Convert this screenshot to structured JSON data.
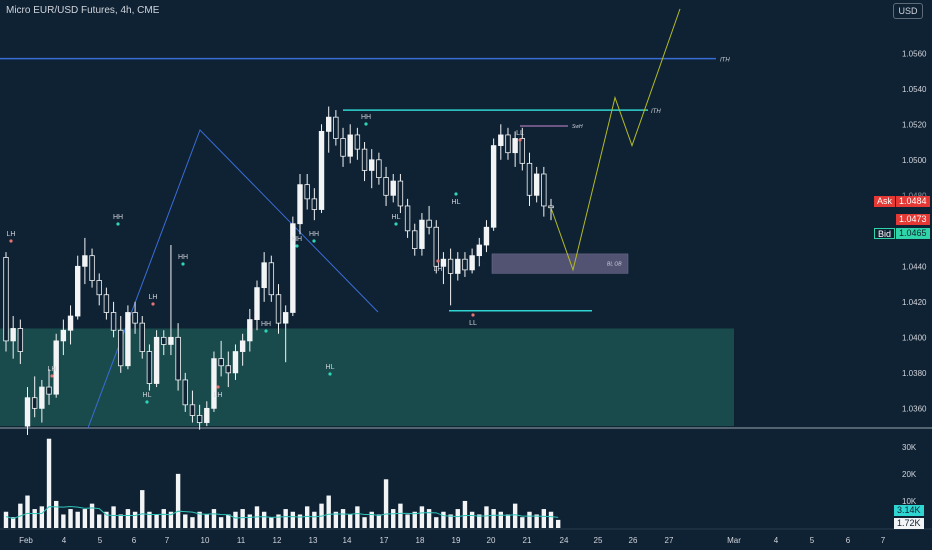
{
  "header": {
    "title": "Micro EUR/USD Futures, 4h, CME",
    "currency_button": "USD"
  },
  "colors": {
    "background": "#0f2233",
    "up_candle": "#f2f4f6",
    "down_candle": "#f2f4f6",
    "zone_fill": "#1d5a55",
    "order_block": "#8a7aa8",
    "cyan_line": "#2fd5d0",
    "blue_line": "#3a6cd6",
    "projection": "#b3bb24",
    "ask": "#e53935",
    "bid": "#2fd5a8",
    "volume_ma": "#2fc3b8"
  },
  "price_axis": {
    "ticks": [
      "1.0560",
      "1.0540",
      "1.0520",
      "1.0500",
      "1.0480",
      "1.0460",
      "1.0440",
      "1.0420",
      "1.0400",
      "1.0380",
      "1.0360"
    ],
    "ask": {
      "label": "Ask",
      "value": "1.0484"
    },
    "last": {
      "value": "1.0473"
    },
    "bid": {
      "label": "Bid",
      "value": "1.0465"
    },
    "hidden_tick": "1.0480"
  },
  "volume_axis": {
    "ticks": [
      "30K",
      "20K",
      "10K"
    ],
    "volume_value": "3.14K",
    "ma_value": "1.72K"
  },
  "time_axis": {
    "ticks": [
      "Feb",
      "4",
      "5",
      "6",
      "7",
      "10",
      "11",
      "12",
      "13",
      "14",
      "17",
      "18",
      "19",
      "20",
      "21",
      "24",
      "25",
      "26",
      "27",
      "Mar",
      "4",
      "5",
      "6",
      "7"
    ]
  },
  "annotations": {
    "ith_top": "ITH",
    "ith_mid": "ITH",
    "swh": "SwH",
    "bl_ob": "BL OB",
    "structure_labels": [
      "LH",
      "HH",
      "LH",
      "HH",
      "LH",
      "LH",
      "HL",
      "HH",
      "HH",
      "HL",
      "HH",
      "HL",
      "HH",
      "HL",
      "LH",
      "LL",
      "LL",
      "HH"
    ]
  },
  "chart_data": {
    "type": "candlestick",
    "title": "Micro EUR/USD Futures, 4h, CME",
    "price_range": [
      1.035,
      1.059
    ],
    "candles": [
      [
        1.0445,
        1.0448,
        1.0392,
        1.0398
      ],
      [
        1.0398,
        1.0412,
        1.0388,
        1.0405
      ],
      [
        1.0405,
        1.041,
        1.0385,
        1.0392
      ],
      [
        1.035,
        1.0372,
        1.0345,
        1.0366
      ],
      [
        1.0366,
        1.0378,
        1.0355,
        1.036
      ],
      [
        1.036,
        1.0376,
        1.0352,
        1.0372
      ],
      [
        1.0372,
        1.0382,
        1.0362,
        1.0368
      ],
      [
        1.0368,
        1.0402,
        1.0366,
        1.0398
      ],
      [
        1.0398,
        1.041,
        1.039,
        1.0404
      ],
      [
        1.0404,
        1.0418,
        1.0396,
        1.0412
      ],
      [
        1.0412,
        1.0446,
        1.041,
        1.044
      ],
      [
        1.044,
        1.0456,
        1.043,
        1.0446
      ],
      [
        1.0446,
        1.045,
        1.0428,
        1.0432
      ],
      [
        1.0432,
        1.0436,
        1.0418,
        1.0424
      ],
      [
        1.0424,
        1.0428,
        1.041,
        1.0414
      ],
      [
        1.0414,
        1.042,
        1.04,
        1.0404
      ],
      [
        1.0404,
        1.0412,
        1.038,
        1.0384
      ],
      [
        1.0384,
        1.0418,
        1.0382,
        1.0414
      ],
      [
        1.0414,
        1.042,
        1.0402,
        1.0408
      ],
      [
        1.0408,
        1.0412,
        1.0388,
        1.0392
      ],
      [
        1.0392,
        1.0396,
        1.037,
        1.0374
      ],
      [
        1.0374,
        1.0404,
        1.0372,
        1.04
      ],
      [
        1.04,
        1.0404,
        1.039,
        1.0396
      ],
      [
        1.0396,
        1.0452,
        1.039,
        1.04
      ],
      [
        1.04,
        1.0408,
        1.037,
        1.0376
      ],
      [
        1.0376,
        1.038,
        1.0358,
        1.0362
      ],
      [
        1.0362,
        1.037,
        1.0352,
        1.0356
      ],
      [
        1.0356,
        1.0362,
        1.0348,
        1.0352
      ],
      [
        1.0352,
        1.0364,
        1.035,
        1.036
      ],
      [
        1.036,
        1.0392,
        1.0358,
        1.0388
      ],
      [
        1.0388,
        1.0398,
        1.0378,
        1.0384
      ],
      [
        1.0384,
        1.0392,
        1.0372,
        1.038
      ],
      [
        1.038,
        1.0396,
        1.0376,
        1.0392
      ],
      [
        1.0392,
        1.0402,
        1.0384,
        1.0398
      ],
      [
        1.0398,
        1.0416,
        1.0392,
        1.041
      ],
      [
        1.041,
        1.0432,
        1.0404,
        1.0428
      ],
      [
        1.0428,
        1.0448,
        1.042,
        1.0442
      ],
      [
        1.0442,
        1.0446,
        1.042,
        1.0424
      ],
      [
        1.0424,
        1.043,
        1.0402,
        1.0408
      ],
      [
        1.0408,
        1.0418,
        1.0386,
        1.0414
      ],
      [
        1.0414,
        1.0468,
        1.0412,
        1.0464
      ],
      [
        1.0464,
        1.0492,
        1.0458,
        1.0486
      ],
      [
        1.0486,
        1.0492,
        1.0472,
        1.0478
      ],
      [
        1.0478,
        1.0484,
        1.0466,
        1.0472
      ],
      [
        1.0472,
        1.052,
        1.047,
        1.0516
      ],
      [
        1.0516,
        1.053,
        1.0504,
        1.0524
      ],
      [
        1.0524,
        1.0528,
        1.0508,
        1.0512
      ],
      [
        1.0512,
        1.0518,
        1.0496,
        1.0502
      ],
      [
        1.0502,
        1.052,
        1.0498,
        1.0514
      ],
      [
        1.0514,
        1.0518,
        1.05,
        1.0506
      ],
      [
        1.0506,
        1.051,
        1.0488,
        1.0494
      ],
      [
        1.0494,
        1.0506,
        1.0484,
        1.05
      ],
      [
        1.05,
        1.0504,
        1.0486,
        1.049
      ],
      [
        1.049,
        1.0496,
        1.0474,
        1.048
      ],
      [
        1.048,
        1.0492,
        1.0476,
        1.0488
      ],
      [
        1.0488,
        1.0492,
        1.047,
        1.0474
      ],
      [
        1.0474,
        1.0478,
        1.0456,
        1.046
      ],
      [
        1.046,
        1.0464,
        1.0446,
        1.045
      ],
      [
        1.045,
        1.047,
        1.0446,
        1.0466
      ],
      [
        1.0466,
        1.0474,
        1.0458,
        1.0462
      ],
      [
        1.0462,
        1.0466,
        1.0436,
        1.044
      ],
      [
        1.044,
        1.0448,
        1.043,
        1.0444
      ],
      [
        1.0444,
        1.045,
        1.0418,
        1.0436
      ],
      [
        1.0436,
        1.0448,
        1.0432,
        1.0444
      ],
      [
        1.0444,
        1.0448,
        1.0434,
        1.0438
      ],
      [
        1.0438,
        1.045,
        1.0436,
        1.0446
      ],
      [
        1.0446,
        1.0456,
        1.044,
        1.0452
      ],
      [
        1.0452,
        1.0466,
        1.0448,
        1.0462
      ],
      [
        1.0462,
        1.0512,
        1.046,
        1.0508
      ],
      [
        1.0508,
        1.052,
        1.05,
        1.0514
      ],
      [
        1.0514,
        1.0518,
        1.05,
        1.0504
      ],
      [
        1.0504,
        1.0516,
        1.0496,
        1.0512
      ],
      [
        1.0512,
        1.0518,
        1.0494,
        1.0498
      ],
      [
        1.0498,
        1.0504,
        1.0474,
        1.048
      ],
      [
        1.048,
        1.0496,
        1.0476,
        1.0492
      ],
      [
        1.0492,
        1.0496,
        1.0468,
        1.0474
      ],
      [
        1.0474,
        1.0478,
        1.0466,
        1.0473
      ]
    ],
    "volume_k": [
      6,
      4,
      9,
      12,
      7,
      8,
      33,
      10,
      5,
      7,
      6,
      7,
      9,
      5,
      6,
      8,
      5,
      7,
      6,
      14,
      6,
      5,
      7,
      6,
      20,
      5,
      4,
      6,
      5,
      7,
      4,
      5,
      6,
      7,
      5,
      8,
      6,
      4,
      5,
      7,
      6,
      5,
      8,
      6,
      9,
      12,
      6,
      7,
      5,
      8,
      4,
      6,
      5,
      18,
      7,
      9,
      5,
      6,
      8,
      7,
      4,
      6,
      5,
      7,
      10,
      6,
      5,
      8,
      7,
      6,
      5,
      9,
      4,
      6,
      5,
      7,
      6,
      3
    ],
    "levels": [
      {
        "name": "ITH",
        "price": 1.0557
      },
      {
        "name": "ITH",
        "price": 1.0528
      },
      {
        "name": "SwH",
        "price": 1.0519
      },
      {
        "name": "LL",
        "price": 1.0415
      }
    ],
    "order_block": {
      "name": "BL OB",
      "from": 1.0436,
      "to": 1.0447
    },
    "demand_zone": {
      "from": 1.035,
      "to": 1.0405
    },
    "projection": [
      1.0473,
      1.0438,
      1.0535,
      1.0508,
      1.0585
    ]
  }
}
